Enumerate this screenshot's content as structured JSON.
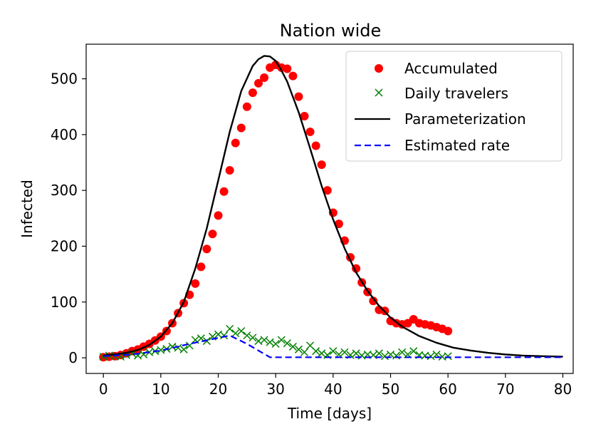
{
  "chart_data": {
    "type": "line",
    "title": "Nation wide",
    "xlabel": "Time [days]",
    "ylabel": "Infected",
    "xlim": [
      -3,
      81.8
    ],
    "ylim": [
      -28,
      562
    ],
    "xticks": [
      0,
      10,
      20,
      30,
      40,
      50,
      60,
      70,
      80
    ],
    "xtick_labels": [
      "0",
      "10",
      "20",
      "30",
      "40",
      "50",
      "60",
      "70",
      "80"
    ],
    "yticks": [
      0,
      100,
      200,
      300,
      400,
      500
    ],
    "ytick_labels": [
      "0",
      "100",
      "200",
      "300",
      "400",
      "500"
    ],
    "grid": false,
    "legend_position": "top-right",
    "colors": {
      "accumulated": "#ff0000",
      "travelers": "#008000",
      "parameterization": "#000000",
      "estimated": "#0000ff"
    },
    "series": [
      {
        "name": "Accumulated",
        "style": "markers-circle",
        "x": [
          0,
          1,
          2,
          3,
          4,
          5,
          6,
          7,
          8,
          9,
          10,
          11,
          12,
          13,
          14,
          15,
          16,
          17,
          18,
          19,
          20,
          21,
          22,
          23,
          24,
          25,
          26,
          27,
          28,
          29,
          30,
          31,
          32,
          33,
          34,
          35,
          36,
          37,
          38,
          39,
          40,
          41,
          42,
          43,
          44,
          45,
          46,
          47,
          48,
          49,
          50,
          51,
          52,
          53,
          54,
          55,
          56,
          57,
          58,
          59,
          60
        ],
        "y": [
          1,
          2,
          3,
          5,
          8,
          12,
          15,
          20,
          25,
          31,
          38,
          48,
          62,
          80,
          98,
          113,
          133,
          163,
          195,
          222,
          255,
          298,
          336,
          385,
          412,
          450,
          475,
          492,
          502,
          520,
          525,
          520,
          518,
          505,
          468,
          433,
          405,
          380,
          346,
          300,
          260,
          240,
          210,
          180,
          160,
          135,
          118,
          102,
          86,
          84,
          66,
          62,
          60,
          62,
          69,
          62,
          60,
          58,
          55,
          52,
          48
        ]
      },
      {
        "name": "Daily travelers",
        "style": "markers-x",
        "x": [
          0,
          1,
          2,
          3,
          4,
          5,
          6,
          7,
          8,
          9,
          10,
          11,
          12,
          13,
          14,
          15,
          16,
          17,
          18,
          19,
          20,
          21,
          22,
          23,
          24,
          25,
          26,
          27,
          28,
          29,
          30,
          31,
          32,
          33,
          34,
          35,
          36,
          37,
          38,
          39,
          40,
          41,
          42,
          43,
          44,
          45,
          46,
          47,
          48,
          49,
          50,
          51,
          52,
          53,
          54,
          55,
          56,
          57,
          58,
          59,
          60
        ],
        "y": [
          2,
          4,
          3,
          2,
          5,
          8,
          4,
          6,
          10,
          12,
          14,
          16,
          20,
          18,
          15,
          22,
          32,
          35,
          30,
          38,
          42,
          40,
          52,
          44,
          48,
          40,
          36,
          30,
          32,
          28,
          25,
          32,
          26,
          20,
          15,
          10,
          22,
          12,
          8,
          5,
          12,
          6,
          10,
          5,
          8,
          4,
          6,
          5,
          8,
          3,
          6,
          4,
          10,
          6,
          12,
          5,
          4,
          3,
          6,
          2,
          3
        ]
      },
      {
        "name": "Parameterization",
        "style": "solid-line",
        "x": [
          0,
          2,
          4,
          6,
          8,
          10,
          12,
          14,
          16,
          18,
          20,
          22,
          24,
          26,
          27,
          28,
          29,
          30,
          31,
          32,
          34,
          36,
          38,
          40,
          42,
          44,
          46,
          48,
          50,
          52,
          55,
          58,
          61,
          64,
          67,
          70,
          73,
          76,
          80
        ],
        "y": [
          4,
          6,
          9,
          14,
          23,
          38,
          62,
          100,
          160,
          232,
          318,
          405,
          478,
          523,
          535,
          541,
          540,
          532,
          515,
          495,
          440,
          375,
          308,
          248,
          196,
          153,
          120,
          93,
          72,
          56,
          39,
          27,
          18,
          13,
          9,
          6,
          4,
          3,
          2
        ]
      },
      {
        "name": "Estimated rate",
        "style": "dashed-line",
        "x": [
          0,
          5,
          10,
          15,
          22,
          25,
          29,
          40,
          50,
          60,
          70,
          80
        ],
        "y": [
          3,
          6,
          13,
          25,
          40,
          25,
          1,
          1,
          1,
          1,
          1,
          1
        ]
      }
    ]
  }
}
